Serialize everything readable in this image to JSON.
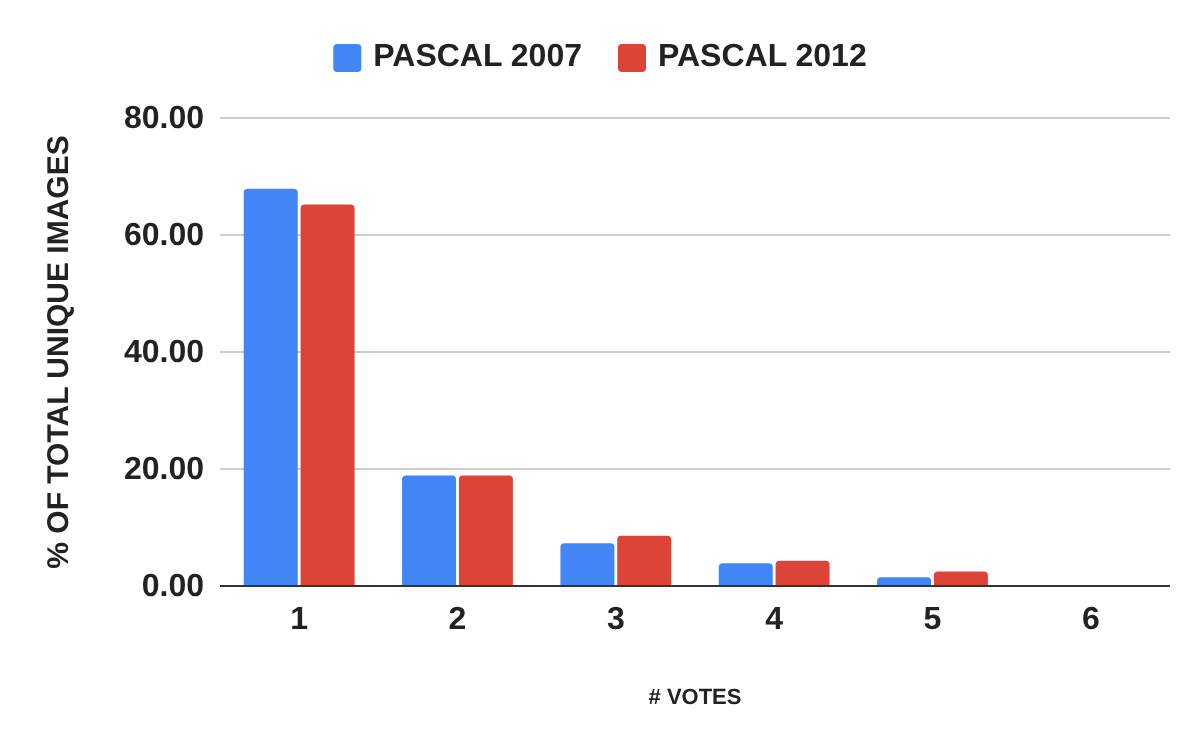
{
  "chart_data": {
    "type": "bar",
    "xlabel": "# VOTES",
    "ylabel": "% OF TOTAL UNIQUE IMAGES",
    "categories": [
      "1",
      "2",
      "3",
      "4",
      "5",
      "6"
    ],
    "series": [
      {
        "name": "PASCAL 2007",
        "color": "#4285f4",
        "values": [
          67.9,
          18.9,
          7.3,
          3.9,
          1.5,
          0
        ]
      },
      {
        "name": "PASCAL 2012",
        "color": "#db4437",
        "values": [
          65.2,
          18.9,
          8.6,
          4.3,
          2.5,
          0
        ]
      }
    ],
    "ylim": [
      0,
      80
    ],
    "yticks": [
      {
        "value": 0,
        "label": "0.00"
      },
      {
        "value": 20,
        "label": "20.00"
      },
      {
        "value": 40,
        "label": "40.00"
      },
      {
        "value": 60,
        "label": "60.00"
      },
      {
        "value": 80,
        "label": "80.00"
      }
    ],
    "grid": "y",
    "legend": "top"
  }
}
